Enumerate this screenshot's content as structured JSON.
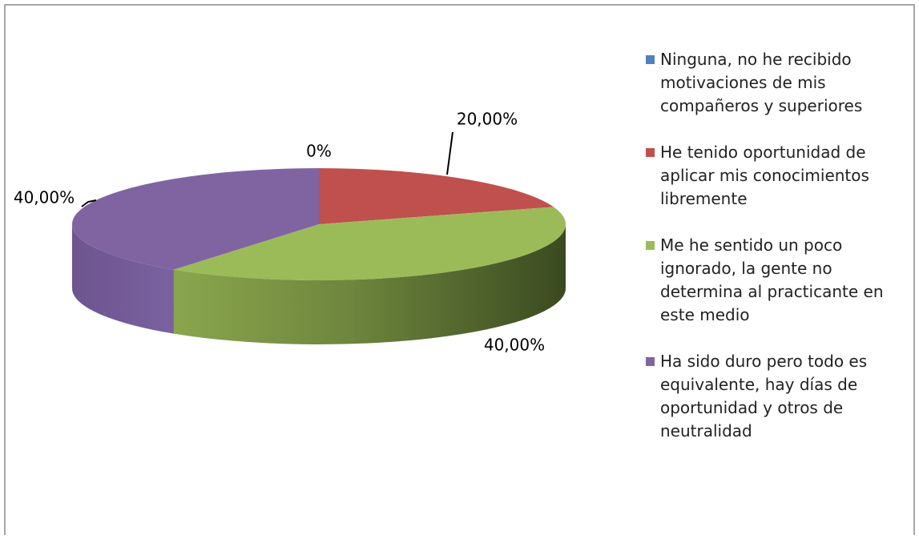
{
  "chart_data": {
    "type": "pie",
    "categories": [
      "Ninguna, no he recibido motivaciones de mis compañeros y superiores",
      "He tenido oportunidad de aplicar mis conocimientos libremente",
      "Me he sentido un poco ignorado, la gente no determina al practicante en este medio",
      "Ha sido duro pero todo es equivalente, hay días de oportunidad y otros de neutralidad"
    ],
    "values": [
      0,
      20,
      40,
      40
    ],
    "value_labels": [
      "0%",
      "20,00%",
      "40,00%",
      "40,00%"
    ],
    "colors": [
      "#4f81bd",
      "#c0504d",
      "#9bbb59",
      "#8064a2"
    ],
    "legend": "right"
  }
}
